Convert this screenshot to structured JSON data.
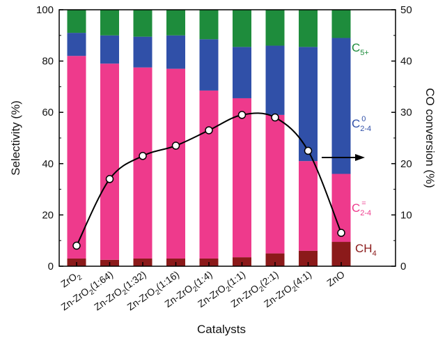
{
  "chart_data": {
    "type": "bar",
    "stacked": true,
    "categories": [
      "ZrO2",
      "Zn-ZrO2(1:64)",
      "Zn-ZrO2(1:32)",
      "Zn-ZrO2(1:16)",
      "Zn-ZrO2(1:4)",
      "Zn-ZrO2(1:1)",
      "Zn-ZrO2(2:1)",
      "Zn-ZrO2(4:1)",
      "ZnO"
    ],
    "categories_display": [
      {
        "main": "ZrO",
        "sub": "2",
        "tail": ""
      },
      {
        "main": "Zn-ZrO",
        "sub": "2",
        "tail": "(1:64)"
      },
      {
        "main": "Zn-ZrO",
        "sub": "2",
        "tail": "(1:32)"
      },
      {
        "main": "Zn-ZrO",
        "sub": "2",
        "tail": "(1:16)"
      },
      {
        "main": "Zn-ZrO",
        "sub": "2",
        "tail": "(1:4)"
      },
      {
        "main": "Zn-ZrO",
        "sub": "2",
        "tail": "(1:1)"
      },
      {
        "main": "Zn-ZrO",
        "sub": "2",
        "tail": "(2:1)"
      },
      {
        "main": "Zn-ZrO",
        "sub": "2",
        "tail": "(4:1)"
      },
      {
        "main": "ZnO",
        "sub": "",
        "tail": ""
      }
    ],
    "series": [
      {
        "name": "CH4",
        "label_main": "CH",
        "label_sub": "4",
        "label_sup": "",
        "color": "#8b1a1a",
        "values": [
          3,
          2.5,
          3,
          3,
          3,
          3.5,
          5,
          6,
          9.5
        ]
      },
      {
        "name": "C2-4=",
        "label_main": "C",
        "label_sub": "2-4",
        "label_sup": "=",
        "color": "#ee3a8c",
        "values": [
          79,
          76.5,
          74.5,
          74,
          65.5,
          62,
          54,
          35,
          26.5
        ]
      },
      {
        "name": "C2-40",
        "label_main": "C",
        "label_sub": "2-4",
        "label_sup": "0",
        "color": "#3050a8",
        "values": [
          9,
          11,
          12,
          13,
          20,
          20,
          27,
          44.5,
          53
        ]
      },
      {
        "name": "C5+",
        "label_main": "C",
        "label_sub": "5+",
        "label_sup": "",
        "color": "#1e8c3c",
        "values": [
          9,
          10,
          10.5,
          10,
          11.5,
          14.5,
          14,
          14.5,
          11
        ]
      }
    ],
    "co_conversion": [
      4,
      17,
      21.5,
      23.5,
      26.5,
      29.5,
      29,
      22.5,
      6.5
    ],
    "xlabel": "Catalysts",
    "ylabel": "Selectivity (%)",
    "y2label": "CO conversion (%)",
    "ylim": [
      0,
      100
    ],
    "y2lim": [
      0,
      50
    ],
    "yticks": [
      0,
      20,
      40,
      60,
      80,
      100
    ],
    "y2ticks": [
      0,
      10,
      20,
      30,
      40,
      50
    ],
    "grid": false
  }
}
